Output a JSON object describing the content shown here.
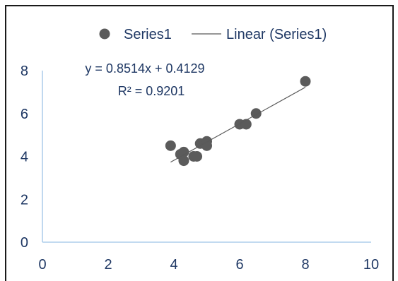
{
  "chart_data": {
    "type": "scatter",
    "xlim": [
      0,
      10
    ],
    "ylim": [
      0,
      8
    ],
    "x_ticks": [
      0,
      2,
      4,
      6,
      8,
      10
    ],
    "y_ticks": [
      0,
      2,
      4,
      6,
      8
    ],
    "grid": false,
    "legend": {
      "placement": "top"
    },
    "series": [
      {
        "name": "Series1",
        "color": "#5b5b5b",
        "x": [
          3.9,
          4.2,
          4.3,
          4.3,
          4.6,
          4.7,
          4.8,
          5.0,
          5.0,
          6.0,
          6.2,
          6.5,
          8.0
        ],
        "y": [
          4.5,
          4.1,
          4.2,
          3.8,
          4.0,
          4.0,
          4.6,
          4.7,
          4.5,
          5.5,
          5.5,
          6.0,
          7.5
        ]
      }
    ],
    "trendline": {
      "name": "Linear (Series1)",
      "type": "linear",
      "slope": 0.8514,
      "intercept": 0.4129,
      "equation": "y = 0.8514x + 0.4129",
      "r_squared": "R² = 0.9201",
      "color": "#595959"
    }
  },
  "colors": {
    "axis": "#9dc3e6",
    "text": "#1f3864",
    "frame": "#1a1a1a",
    "background": "#ffffff"
  }
}
